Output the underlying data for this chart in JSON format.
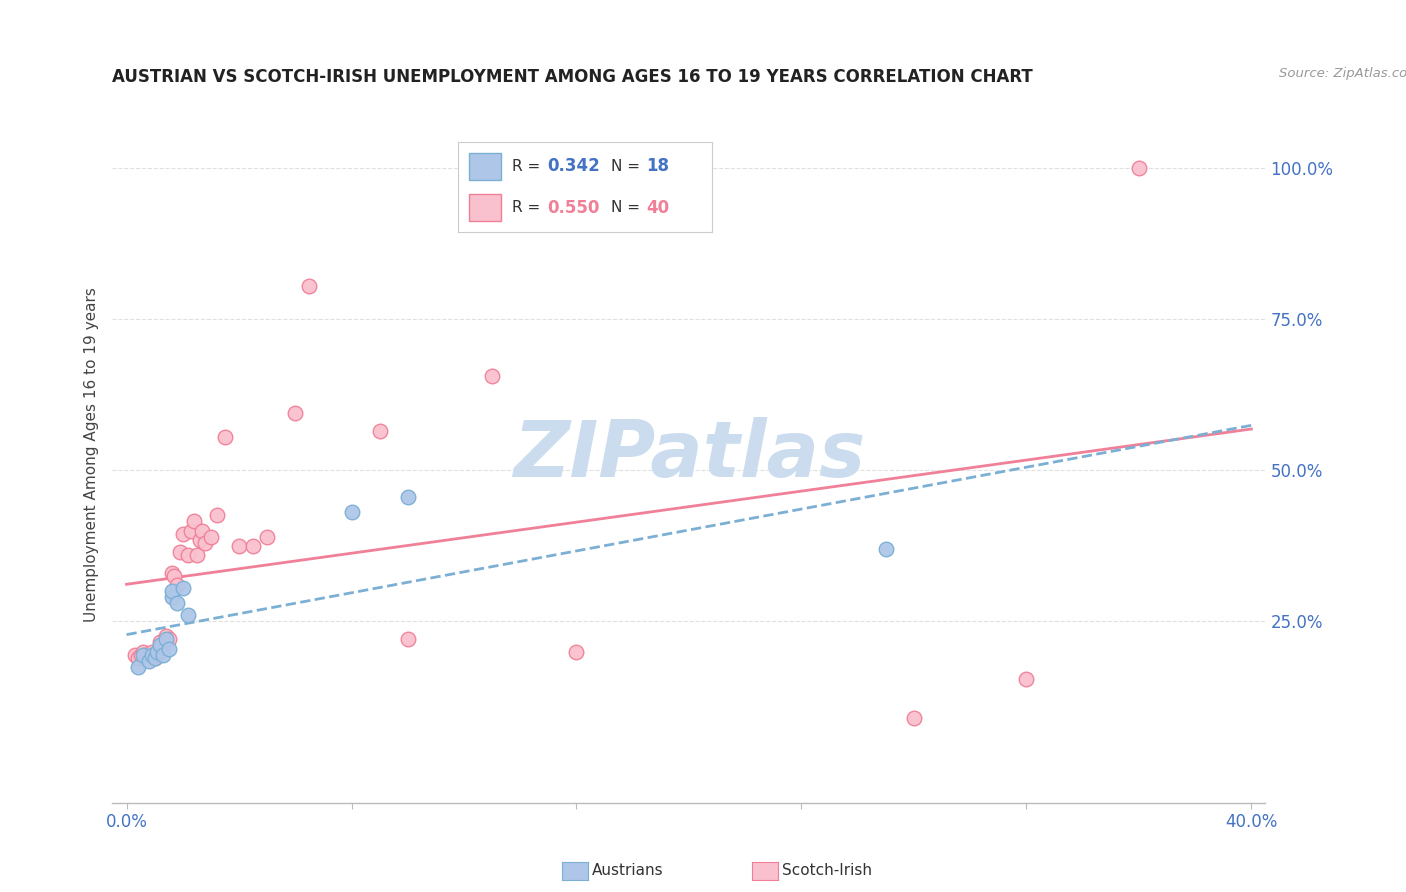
{
  "title": "AUSTRIAN VS SCOTCH-IRISH UNEMPLOYMENT AMONG AGES 16 TO 19 YEARS CORRELATION CHART",
  "source": "Source: ZipAtlas.com",
  "ylabel": "Unemployment Among Ages 16 to 19 years",
  "xlim": [
    0.0,
    0.4
  ],
  "ylim": [
    0.0,
    1.05
  ],
  "yticks": [
    0.25,
    0.5,
    0.75,
    1.0
  ],
  "ytick_labels": [
    "25.0%",
    "50.0%",
    "75.0%",
    "100.0%"
  ],
  "xtick_positions": [
    0.0,
    0.08,
    0.16,
    0.24,
    0.32,
    0.4
  ],
  "xtick_labels": [
    "0.0%",
    "",
    "",
    "",
    "",
    "40.0%"
  ],
  "austrians_R": 0.342,
  "austrians_N": 18,
  "scotch_irish_R": 0.55,
  "scotch_irish_N": 40,
  "austrians_color": "#aec6e8",
  "austrians_edge_color": "#7bafd4",
  "austrians_line_color": "#7bafd4",
  "scotch_irish_color": "#f9c0cd",
  "scotch_irish_edge_color": "#f08098",
  "scotch_irish_line_color": "#f08098",
  "legend_R_color": "#4472c4",
  "legend_N_color": "#4472c4",
  "scotch_legend_R_color": "#f08098",
  "scotch_legend_N_color": "#f08098",
  "watermark_color": "#ccdcef",
  "background_color": "#ffffff",
  "grid_color": "#e0e0e0",
  "austrians_x": [
    0.004,
    0.006,
    0.008,
    0.009,
    0.01,
    0.011,
    0.012,
    0.013,
    0.014,
    0.015,
    0.016,
    0.016,
    0.018,
    0.02,
    0.022,
    0.08,
    0.1,
    0.27
  ],
  "austrians_y": [
    0.175,
    0.195,
    0.185,
    0.195,
    0.19,
    0.2,
    0.21,
    0.195,
    0.22,
    0.205,
    0.29,
    0.3,
    0.28,
    0.305,
    0.26,
    0.43,
    0.455,
    0.37
  ],
  "scotch_irish_x": [
    0.003,
    0.004,
    0.005,
    0.006,
    0.007,
    0.008,
    0.009,
    0.01,
    0.011,
    0.012,
    0.013,
    0.014,
    0.015,
    0.016,
    0.017,
    0.018,
    0.019,
    0.02,
    0.022,
    0.023,
    0.024,
    0.025,
    0.026,
    0.027,
    0.028,
    0.03,
    0.032,
    0.035,
    0.04,
    0.045,
    0.05,
    0.06,
    0.065,
    0.09,
    0.1,
    0.13,
    0.16,
    0.28,
    0.32,
    0.36
  ],
  "scotch_irish_y": [
    0.195,
    0.19,
    0.195,
    0.2,
    0.195,
    0.195,
    0.2,
    0.19,
    0.195,
    0.215,
    0.21,
    0.225,
    0.22,
    0.33,
    0.325,
    0.31,
    0.365,
    0.395,
    0.36,
    0.4,
    0.415,
    0.36,
    0.385,
    0.4,
    0.38,
    0.39,
    0.425,
    0.555,
    0.375,
    0.375,
    0.39,
    0.595,
    0.805,
    0.565,
    0.22,
    0.655,
    0.2,
    0.09,
    0.155,
    1.0
  ]
}
